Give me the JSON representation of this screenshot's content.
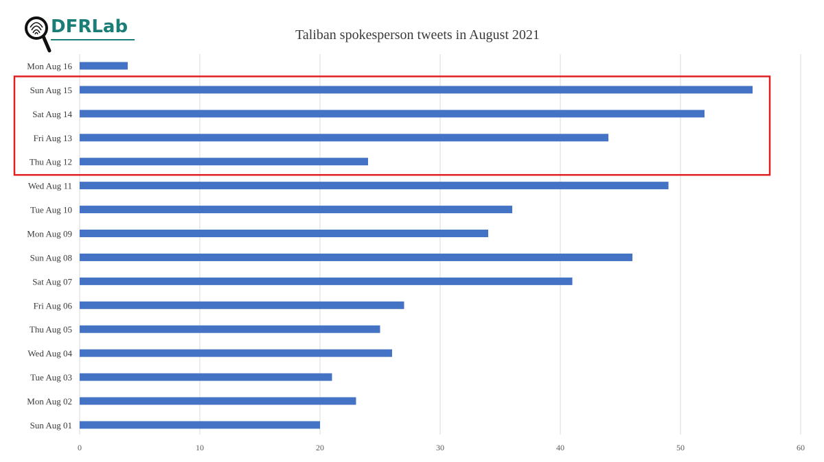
{
  "logo": {
    "text": "DFRLab",
    "icon": "magnifier-fingerprint-icon"
  },
  "chart_data": {
    "type": "bar",
    "orientation": "horizontal",
    "title": "Taliban spokesperson tweets in August 2021",
    "xlabel": "",
    "ylabel": "",
    "categories": [
      "Mon Aug 16",
      "Sun Aug 15",
      "Sat Aug 14",
      "Fri Aug 13",
      "Thu Aug 12",
      "Wed Aug 11",
      "Tue Aug 10",
      "Mon Aug 09",
      "Sun Aug 08",
      "Sat Aug 07",
      "Fri Aug 06",
      "Thu Aug 05",
      "Wed Aug 04",
      "Tue Aug 03",
      "Mon Aug 02",
      "Sun Aug 01"
    ],
    "values": [
      4,
      56,
      52,
      44,
      24,
      49,
      36,
      34,
      46,
      41,
      27,
      25,
      26,
      21,
      23,
      20
    ],
    "xlim": [
      0,
      60
    ],
    "xticks": [
      0,
      10,
      20,
      30,
      40,
      50,
      60
    ],
    "grid": true,
    "bar_color": "#4472c4",
    "grid_color": "#d9d9d9",
    "highlight": {
      "categories": [
        "Sun Aug 15",
        "Sat Aug 14",
        "Fri Aug 13",
        "Thu Aug 12"
      ],
      "color": "#e02020"
    }
  }
}
